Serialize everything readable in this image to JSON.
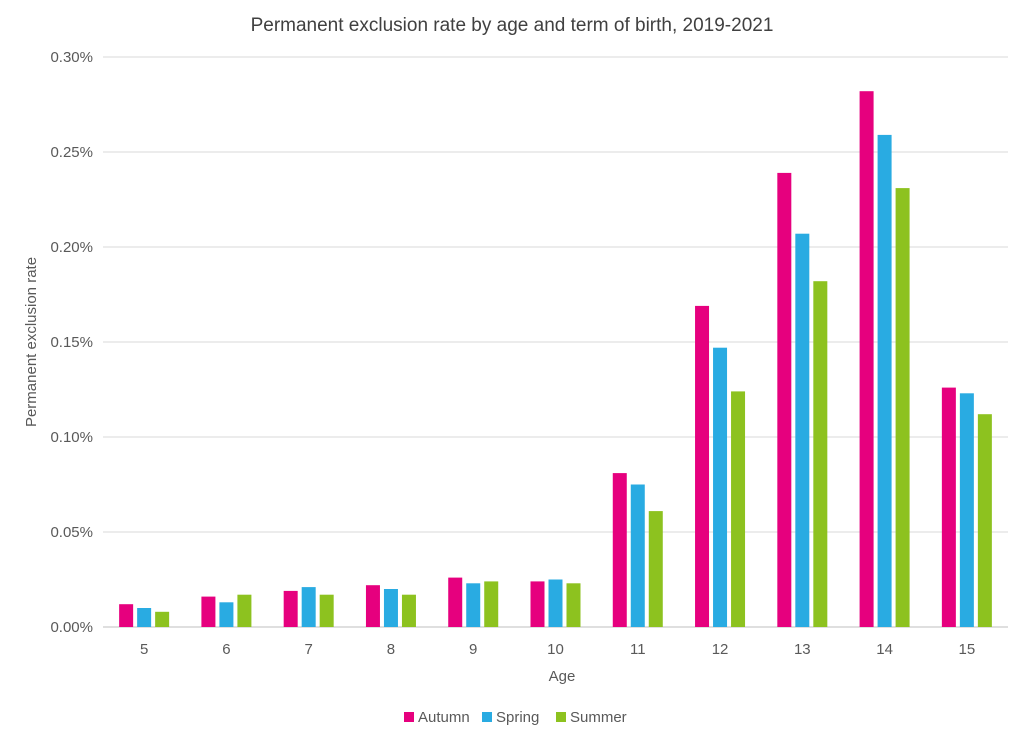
{
  "chart_data": {
    "type": "bar",
    "title": "Permanent exclusion rate by age and term of birth, 2019-2021",
    "xlabel": "Age",
    "ylabel": "Permanent exclusion rate",
    "categories": [
      "5",
      "6",
      "7",
      "8",
      "9",
      "10",
      "11",
      "12",
      "13",
      "14",
      "15"
    ],
    "ylim": [
      0,
      0.3
    ],
    "yticks": [
      0,
      0.05,
      0.1,
      0.15,
      0.2,
      0.25,
      0.3
    ],
    "ytick_labels": [
      "0.00%",
      "0.05%",
      "0.10%",
      "0.15%",
      "0.20%",
      "0.25%",
      "0.30%"
    ],
    "grid": true,
    "legend": "bottom",
    "series": [
      {
        "name": "Autumn",
        "color": "#e6007e",
        "values": [
          0.012,
          0.016,
          0.019,
          0.022,
          0.026,
          0.024,
          0.081,
          0.169,
          0.239,
          0.282,
          0.126
        ]
      },
      {
        "name": "Spring",
        "color": "#29abe2",
        "values": [
          0.01,
          0.013,
          0.021,
          0.02,
          0.023,
          0.025,
          0.075,
          0.147,
          0.207,
          0.259,
          0.123
        ]
      },
      {
        "name": "Summer",
        "color": "#8dc21f",
        "values": [
          0.008,
          0.017,
          0.017,
          0.017,
          0.024,
          0.023,
          0.061,
          0.124,
          0.182,
          0.231,
          0.112
        ]
      }
    ]
  }
}
